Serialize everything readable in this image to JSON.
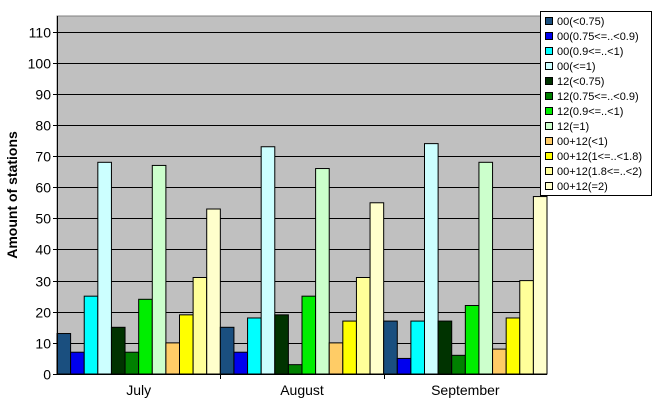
{
  "chart_data": {
    "type": "bar",
    "title": "",
    "xlabel": "",
    "ylabel": "Amount of stations",
    "ylim": [
      0,
      115
    ],
    "yticks": [
      0,
      10,
      20,
      30,
      40,
      50,
      60,
      70,
      80,
      90,
      100,
      110
    ],
    "grid": true,
    "legend_position": "right",
    "categories": [
      "July",
      "August",
      "September"
    ],
    "series": [
      {
        "name": "00(<0.75)",
        "color": "#1a4f7f",
        "values": [
          13,
          15,
          17
        ]
      },
      {
        "name": "00(0.75<=..<0.9)",
        "color": "#0000ee",
        "values": [
          7,
          7,
          5
        ]
      },
      {
        "name": "00(0.9<=..<1)",
        "color": "#00ffff",
        "values": [
          25,
          18,
          17
        ]
      },
      {
        "name": "00(<=1)",
        "color": "#ccffff",
        "values": [
          68,
          73,
          74
        ]
      },
      {
        "name": "12(<0.75)",
        "color": "#003300",
        "values": [
          15,
          19,
          17
        ]
      },
      {
        "name": "12(0.75<=..<0.9)",
        "color": "#008000",
        "values": [
          7,
          3,
          6
        ]
      },
      {
        "name": "12(0.9<=..<1)",
        "color": "#00ee00",
        "values": [
          24,
          25,
          22
        ]
      },
      {
        "name": "12(=1)",
        "color": "#ccffcc",
        "values": [
          67,
          66,
          68
        ]
      },
      {
        "name": "00+12(<1)",
        "color": "#ffcc66",
        "values": [
          10,
          10,
          8
        ]
      },
      {
        "name": "00+12(1<=..<1.8)",
        "color": "#ffff00",
        "values": [
          19,
          17,
          18
        ]
      },
      {
        "name": "00+12(1.8<=..<2)",
        "color": "#ffff99",
        "values": [
          31,
          31,
          30
        ]
      },
      {
        "name": "00+12(=2)",
        "color": "#ffffcc",
        "values": [
          53,
          55,
          57
        ]
      }
    ]
  }
}
